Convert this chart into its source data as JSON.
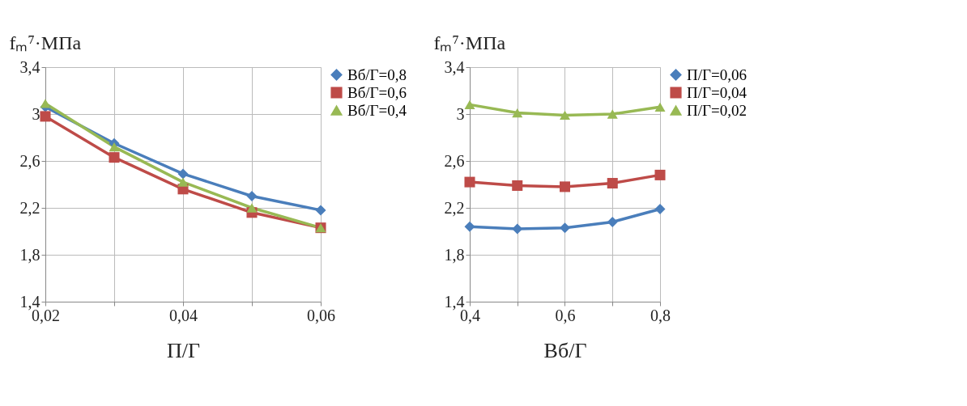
{
  "chart_data": [
    {
      "type": "line",
      "ylabel": "fₘ⁷·МПа",
      "xlabel": "П/Г",
      "x": [
        0.02,
        0.03,
        0.04,
        0.05,
        0.06
      ],
      "series": [
        {
          "name": "Вб/Г=0,8",
          "color": "#4a7ebb",
          "marker": "diamond",
          "values": [
            3.06,
            2.75,
            2.49,
            2.3,
            2.18
          ]
        },
        {
          "name": "Вб/Г=0,6",
          "color": "#be4b48",
          "marker": "square",
          "values": [
            2.98,
            2.63,
            2.36,
            2.16,
            2.03
          ]
        },
        {
          "name": "Вб/Г=0,4",
          "color": "#98b954",
          "marker": "triangle",
          "values": [
            3.09,
            2.72,
            2.42,
            2.2,
            2.03
          ]
        }
      ],
      "xlim": [
        0.02,
        0.06
      ],
      "xticks": [
        {
          "value": 0.02,
          "label": "0,02"
        },
        {
          "value": 0.03,
          "label": null
        },
        {
          "value": 0.04,
          "label": "0,04"
        },
        {
          "value": 0.05,
          "label": null
        },
        {
          "value": 0.06,
          "label": "0,06"
        }
      ],
      "ylim": [
        1.4,
        3.4
      ],
      "yticks": [
        {
          "value": 1.4,
          "label": "1,4"
        },
        {
          "value": 1.8,
          "label": "1,8"
        },
        {
          "value": 2.2,
          "label": "2,2"
        },
        {
          "value": 2.6,
          "label": "2,6"
        },
        {
          "value": 3,
          "label": "3"
        },
        {
          "value": 3.4,
          "label": "3,4"
        }
      ],
      "grid": true,
      "legend": "right",
      "line_style": "solid"
    },
    {
      "type": "line",
      "ylabel": "fₘ⁷·МПа",
      "xlabel": "Вб/Г",
      "x": [
        0.4,
        0.5,
        0.6,
        0.7,
        0.8
      ],
      "series": [
        {
          "name": "П/Г=0,06",
          "color": "#4a7ebb",
          "marker": "diamond",
          "values": [
            2.04,
            2.02,
            2.03,
            2.08,
            2.19
          ]
        },
        {
          "name": "П/Г=0,04",
          "color": "#be4b48",
          "marker": "square",
          "values": [
            2.42,
            2.39,
            2.38,
            2.41,
            2.48
          ]
        },
        {
          "name": "П/Г=0,02",
          "color": "#98b954",
          "marker": "triangle",
          "values": [
            3.08,
            3.01,
            2.99,
            3.0,
            3.06
          ]
        }
      ],
      "xlim": [
        0.4,
        0.8
      ],
      "xticks": [
        {
          "value": 0.4,
          "label": "0,4"
        },
        {
          "value": 0.5,
          "label": null
        },
        {
          "value": 0.6,
          "label": "0,6"
        },
        {
          "value": 0.7,
          "label": null
        },
        {
          "value": 0.8,
          "label": "0,8"
        }
      ],
      "ylim": [
        1.4,
        3.4
      ],
      "yticks": [
        {
          "value": 1.4,
          "label": "1,4"
        },
        {
          "value": 1.8,
          "label": "1,8"
        },
        {
          "value": 2.2,
          "label": "2,2"
        },
        {
          "value": 2.6,
          "label": "2,6"
        },
        {
          "value": 3,
          "label": "3"
        },
        {
          "value": 3.4,
          "label": "3,4"
        }
      ],
      "grid": true,
      "legend": "right",
      "line_style": "solid"
    }
  ]
}
